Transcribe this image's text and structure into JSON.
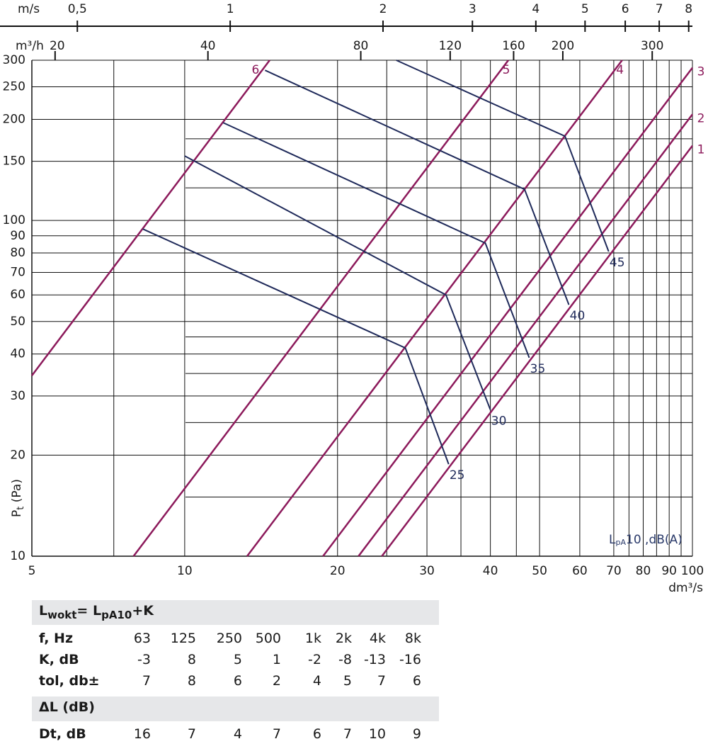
{
  "chart_data": {
    "type": "line",
    "log_x": true,
    "log_y": true,
    "grid": true,
    "x_label": "dm³/s",
    "y_label": [
      "P",
      "t",
      " (Pa)"
    ],
    "legend_label": [
      "L",
      "pA",
      "10 ,dB(A)"
    ],
    "xlim": [
      5,
      100
    ],
    "ylim": [
      10,
      300
    ],
    "xticks": [
      5,
      10,
      20,
      30,
      40,
      50,
      60,
      70,
      80,
      90,
      100
    ],
    "xgrid_extra": [
      7.25,
      25,
      35,
      45,
      75,
      85,
      95
    ],
    "yticks": [
      10,
      20,
      30,
      40,
      50,
      60,
      70,
      80,
      90,
      100,
      150,
      200,
      250,
      300
    ],
    "ygrid_partial": [
      15,
      25,
      35,
      45,
      125,
      175
    ],
    "top_axes": [
      {
        "label": "m/s",
        "lim": [
          0.4068,
          8.137
        ],
        "ticks": [
          {
            "value": 0.5,
            "label": "0,5"
          },
          1,
          2,
          3,
          4,
          5,
          6,
          7,
          8
        ]
      },
      {
        "label": "m³/h",
        "lim": [
          18,
          360
        ],
        "ticks": [
          20,
          40,
          80,
          120,
          160,
          200,
          300
        ]
      }
    ],
    "series": [
      {
        "name": "6",
        "color": "#8c1a5b",
        "x": [
          5,
          14.7
        ],
        "values": [
          34.5,
          300
        ]
      },
      {
        "name": "5",
        "color": "#8c1a5b",
        "x": [
          7.93,
          43.4
        ],
        "values": [
          10,
          300
        ]
      },
      {
        "name": "4",
        "color": "#8c1a5b",
        "x": [
          13.27,
          72.7
        ],
        "values": [
          10,
          300
        ]
      },
      {
        "name": "3",
        "color": "#8c1a5b",
        "x": [
          18.72,
          100
        ],
        "values": [
          10,
          285
        ]
      },
      {
        "name": "2",
        "color": "#8c1a5b",
        "x": [
          21.99,
          100
        ],
        "values": [
          10,
          207
        ]
      },
      {
        "name": "1",
        "color": "#8c1a5b",
        "x": [
          24.45,
          100
        ],
        "values": [
          10,
          167
        ]
      },
      {
        "name": "25",
        "color": "#1f2a5a",
        "x": [
          8.27,
          27.2,
          33.1
        ],
        "values": [
          94.3,
          41.7,
          18.8
        ]
      },
      {
        "name": "30",
        "color": "#1f2a5a",
        "x": [
          10,
          32.7,
          40
        ],
        "values": [
          155.6,
          60,
          27.3
        ]
      },
      {
        "name": "35",
        "color": "#1f2a5a",
        "x": [
          11.9,
          39.1,
          47.7
        ],
        "values": [
          195.5,
          85.6,
          39
        ]
      },
      {
        "name": "40",
        "color": "#1f2a5a",
        "x": [
          14.4,
          46.7,
          57.1
        ],
        "values": [
          280,
          123.8,
          56.1
        ]
      },
      {
        "name": "45",
        "color": "#1f2a5a",
        "x": [
          26.1,
          56.1,
          68.4
        ],
        "values": [
          300,
          178.2,
          80.8
        ]
      }
    ]
  },
  "table": {
    "formula": [
      "L",
      "wokt",
      "= L",
      "pA10",
      "+K"
    ],
    "rows": [
      [
        "f, Hz",
        "63",
        "125",
        "250",
        "500",
        "1k",
        "2k",
        "4k",
        "8k"
      ],
      [
        "K, dB",
        -3,
        8,
        5,
        1,
        -2,
        -8,
        -13,
        -16
      ],
      [
        "tol, db±",
        7,
        8,
        6,
        2,
        4,
        5,
        7,
        6
      ]
    ],
    "delta_header": "ΔL (dB)",
    "delta_rows": [
      [
        "Dt, dB",
        16,
        7,
        4,
        7,
        6,
        7,
        10,
        9
      ]
    ]
  }
}
